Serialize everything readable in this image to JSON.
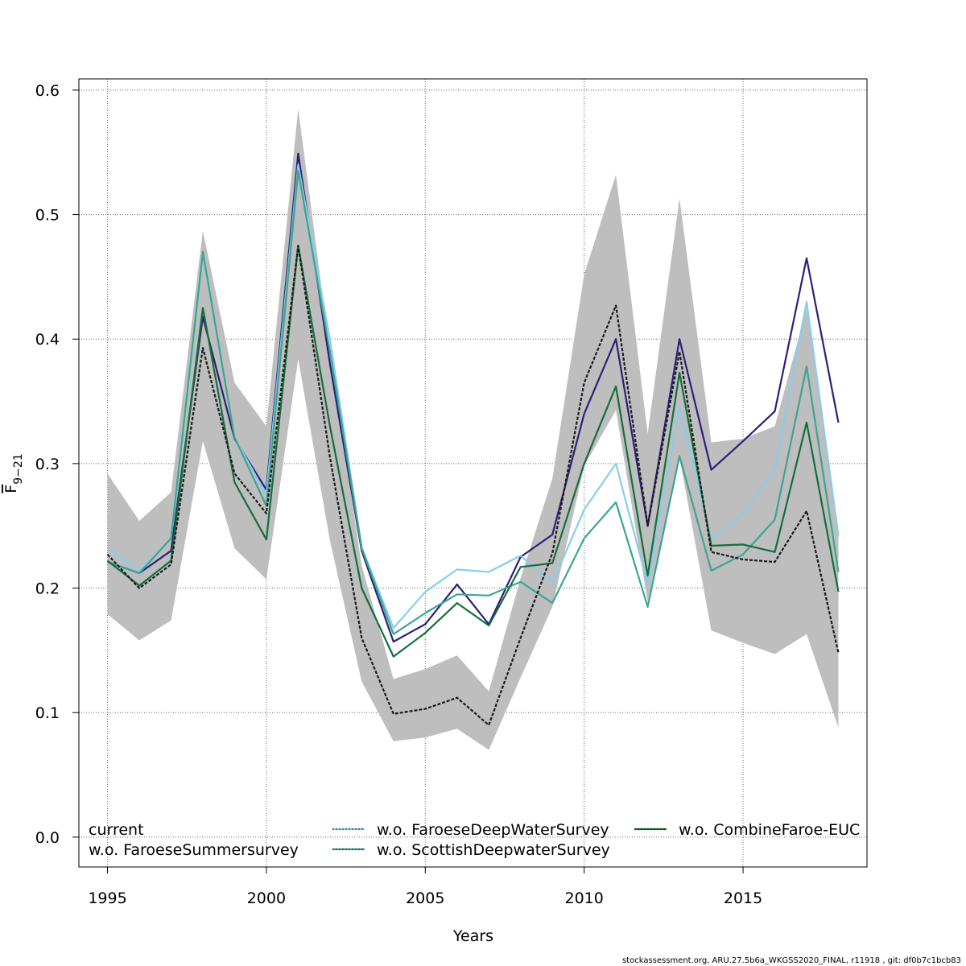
{
  "chart_data": {
    "type": "line",
    "xlabel": "Years",
    "ylabel_main": "F",
    "ylabel_sub": "9−21",
    "xlim": [
      1994.1,
      2018.9
    ],
    "ylim": [
      -0.024,
      0.609
    ],
    "grid": true,
    "x_ticks": [
      1995,
      2000,
      2005,
      2010,
      2015
    ],
    "x_tick_labels": [
      "1995",
      "2000",
      "2005",
      "2010",
      "2015"
    ],
    "y_ticks": [
      0.0,
      0.1,
      0.2,
      0.3,
      0.4,
      0.5,
      0.6
    ],
    "y_tick_labels": [
      "0.0",
      "0.1",
      "0.2",
      "0.3",
      "0.4",
      "0.5",
      "0.6"
    ],
    "x": [
      1995,
      1996,
      1997,
      1998,
      1999,
      2000,
      2001,
      2002,
      2003,
      2004,
      2005,
      2006,
      2007,
      2008,
      2009,
      2010,
      2011,
      2012,
      2013,
      2014,
      2015,
      2016,
      2017,
      2018
    ],
    "confidence_band": {
      "color": "#bebebe",
      "upper": [
        0.292,
        0.254,
        0.277,
        0.487,
        0.365,
        0.33,
        0.585,
        0.39,
        0.218,
        0.127,
        0.135,
        0.146,
        0.117,
        0.208,
        0.288,
        0.452,
        0.532,
        0.324,
        0.513,
        0.317,
        0.32,
        0.33,
        0.425,
        0.244
      ],
      "lower": [
        0.179,
        0.158,
        0.174,
        0.318,
        0.232,
        0.207,
        0.384,
        0.238,
        0.125,
        0.077,
        0.08,
        0.087,
        0.07,
        0.128,
        0.185,
        0.298,
        0.343,
        0.189,
        0.305,
        0.166,
        0.156,
        0.147,
        0.163,
        0.088
      ]
    },
    "series": [
      {
        "name": "current",
        "color": "#1a1a1a",
        "dash": "4,2",
        "values": [
          0.227,
          0.2,
          0.219,
          0.393,
          0.292,
          0.26,
          0.475,
          0.305,
          0.16,
          0.099,
          0.103,
          0.112,
          0.09,
          0.16,
          0.228,
          0.365,
          0.427,
          0.25,
          0.39,
          0.229,
          0.223,
          0.221,
          0.262,
          0.148
        ]
      },
      {
        "name": "w.o. FaroeseSummersurvey",
        "color": "#2b2079",
        "dash": "",
        "values": [
          0.221,
          0.212,
          0.23,
          0.418,
          0.32,
          0.279,
          0.549,
          0.38,
          0.23,
          0.157,
          0.171,
          0.203,
          0.171,
          0.225,
          0.243,
          0.34,
          0.4,
          0.25,
          0.4,
          0.295,
          0.318,
          0.342,
          0.465,
          0.333
        ]
      },
      {
        "name": "w.o. FaroeseDeepWaterSurvey",
        "color": "#87ceeb",
        "dash": "",
        "values": [
          0.232,
          0.214,
          0.24,
          0.468,
          0.321,
          0.275,
          0.54,
          0.4,
          0.233,
          0.168,
          0.197,
          0.215,
          0.213,
          0.226,
          0.204,
          0.263,
          0.3,
          0.203,
          0.345,
          0.239,
          0.26,
          0.295,
          0.43,
          0.242
        ]
      },
      {
        "name": "w.o. ScottishDeepwaterSurvey",
        "color": "#3ca591",
        "dash": "",
        "values": [
          0.221,
          0.212,
          0.24,
          0.47,
          0.321,
          0.266,
          0.535,
          0.39,
          0.232,
          0.163,
          0.18,
          0.195,
          0.194,
          0.205,
          0.188,
          0.24,
          0.269,
          0.185,
          0.306,
          0.214,
          0.227,
          0.255,
          0.378,
          0.213
        ]
      },
      {
        "name": "w.o. CombineFaroe-EUC",
        "color": "#136e3c",
        "dash": "",
        "values": [
          0.222,
          0.202,
          0.222,
          0.425,
          0.285,
          0.239,
          0.475,
          0.33,
          0.2,
          0.145,
          0.164,
          0.188,
          0.17,
          0.217,
          0.22,
          0.3,
          0.362,
          0.21,
          0.373,
          0.234,
          0.235,
          0.229,
          0.333,
          0.197
        ]
      }
    ]
  },
  "footer": "stockassessment.org, ARU.27.5b6a_WKGSS2020_FINAL, r11918 , git: df0b7c1bcb83"
}
